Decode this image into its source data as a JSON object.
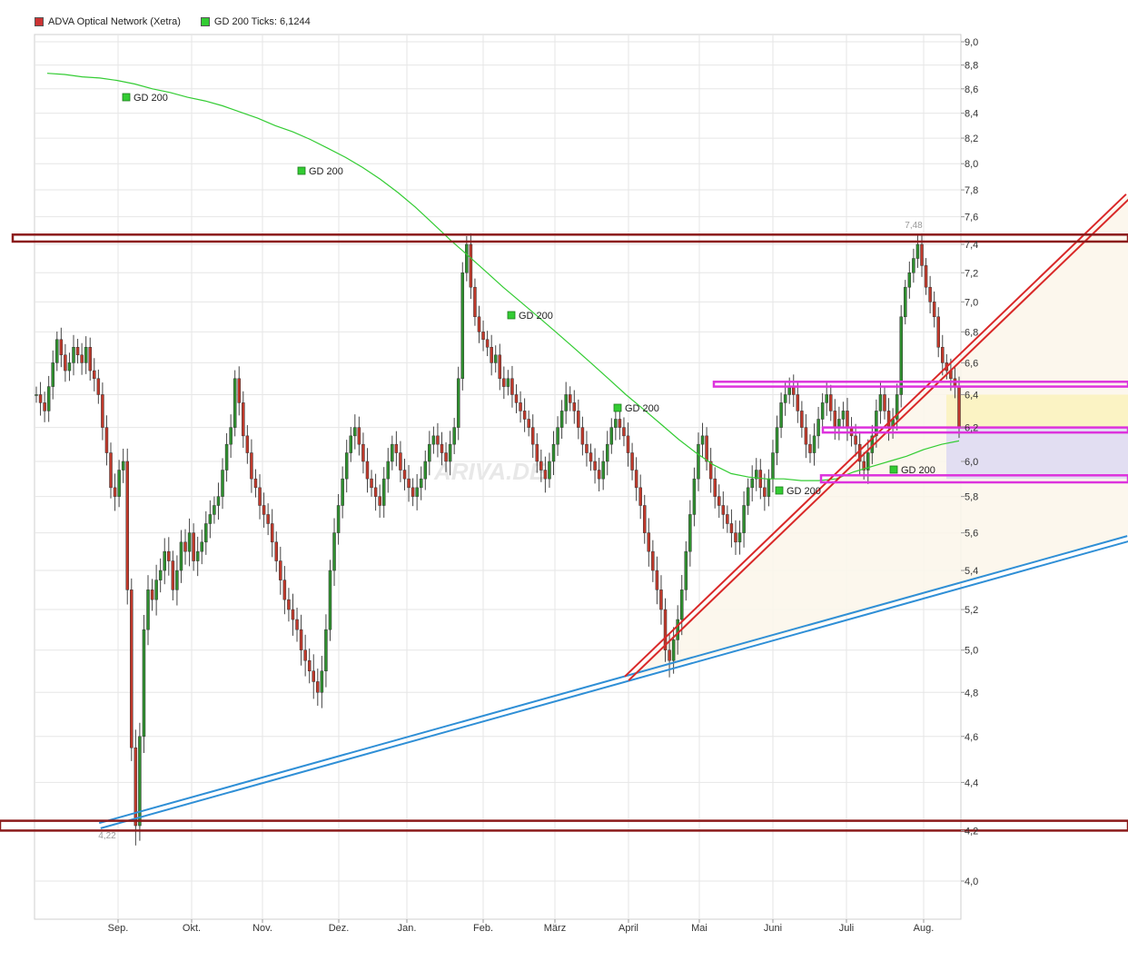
{
  "legend": {
    "series1": {
      "label": "ADVA Optical Network (Xetra)",
      "color": "#cc3333"
    },
    "series2": {
      "label": "GD 200 Ticks: 6,1244",
      "color": "#33cc33"
    }
  },
  "watermark": "ARIVA.DE",
  "chart_data": {
    "type": "candlestick",
    "title": "",
    "xlabel": "",
    "ylabel": "",
    "ylim": [
      3.8,
      9.0
    ],
    "y_ticks": [
      "4,0",
      "4,2",
      "4,4",
      "4,6",
      "4,8",
      "5,0",
      "5,2",
      "5,4",
      "5,6",
      "5,8",
      "6,0",
      "6,2",
      "6,4",
      "6,6",
      "6,8",
      "7,0",
      "7,2",
      "7,4",
      "7,6",
      "7,8",
      "8,0",
      "8,2",
      "8,4",
      "8,6",
      "8,8",
      "9,0"
    ],
    "months": [
      "Sep.",
      "Okt.",
      "Nov.",
      "Dez.",
      "Jan.",
      "Feb.",
      "März",
      "April",
      "Mai",
      "Juni",
      "Juli",
      "Aug."
    ],
    "high_label": "7,48",
    "low_label": "4,22",
    "gd_label": "GD 200",
    "series": [
      {
        "name": "ADVA Optical Network (Xetra)",
        "close": [
          6.4,
          6.35,
          6.3,
          6.45,
          6.6,
          6.75,
          6.65,
          6.55,
          6.6,
          6.7,
          6.65,
          6.6,
          6.7,
          6.55,
          6.5,
          6.4,
          6.2,
          6.05,
          5.85,
          5.8,
          5.95,
          6.0,
          5.3,
          4.55,
          4.22,
          4.6,
          5.1,
          5.3,
          5.25,
          5.35,
          5.4,
          5.5,
          5.45,
          5.3,
          5.4,
          5.55,
          5.5,
          5.6,
          5.45,
          5.5,
          5.55,
          5.65,
          5.7,
          5.75,
          5.8,
          5.95,
          6.1,
          6.2,
          6.5,
          6.35,
          6.15,
          6.05,
          5.9,
          5.85,
          5.75,
          5.7,
          5.65,
          5.55,
          5.45,
          5.35,
          5.25,
          5.2,
          5.15,
          5.1,
          5.0,
          4.95,
          4.9,
          4.85,
          4.8,
          4.9,
          5.1,
          5.4,
          5.6,
          5.75,
          5.9,
          6.05,
          6.15,
          6.2,
          6.1,
          6.0,
          5.9,
          5.85,
          5.8,
          5.75,
          5.9,
          6.0,
          6.1,
          6.05,
          5.95,
          5.9,
          5.85,
          5.8,
          5.85,
          5.9,
          6.0,
          6.1,
          6.15,
          6.1,
          6.05,
          6.0,
          6.1,
          6.2,
          6.5,
          7.2,
          7.4,
          7.1,
          6.9,
          6.8,
          6.75,
          6.7,
          6.6,
          6.65,
          6.5,
          6.45,
          6.5,
          6.4,
          6.35,
          6.3,
          6.25,
          6.2,
          6.1,
          6.0,
          5.95,
          5.9,
          6.0,
          6.1,
          6.2,
          6.3,
          6.4,
          6.35,
          6.3,
          6.2,
          6.1,
          6.05,
          6.0,
          5.95,
          5.9,
          6.0,
          6.1,
          6.2,
          6.25,
          6.2,
          6.15,
          6.05,
          5.95,
          5.85,
          5.75,
          5.6,
          5.5,
          5.4,
          5.3,
          5.2,
          5.0,
          4.95,
          5.05,
          5.15,
          5.3,
          5.5,
          5.7,
          5.9,
          6.1,
          6.15,
          6.0,
          5.9,
          5.8,
          5.75,
          5.7,
          5.65,
          5.6,
          5.55,
          5.6,
          5.75,
          5.85,
          5.9,
          5.95,
          5.85,
          5.8,
          5.9,
          6.05,
          6.2,
          6.35,
          6.4,
          6.45,
          6.4,
          6.3,
          6.2,
          6.1,
          6.05,
          6.15,
          6.25,
          6.35,
          6.4,
          6.3,
          6.2,
          6.25,
          6.3,
          6.2,
          6.15,
          6.1,
          6.0,
          5.95,
          6.05,
          6.15,
          6.3,
          6.4,
          6.3,
          6.2,
          6.25,
          6.4,
          6.9,
          7.1,
          7.2,
          7.3,
          7.4,
          7.25,
          7.1,
          7.0,
          6.9,
          6.7,
          6.6,
          6.55,
          6.5,
          6.45,
          6.2
        ]
      },
      {
        "name": "GD 200",
        "values": [
          8.73,
          8.72,
          8.7,
          8.69,
          8.67,
          8.64,
          8.6,
          8.57,
          8.53,
          8.5,
          8.46,
          8.41,
          8.36,
          8.3,
          8.25,
          8.19,
          8.12,
          8.05,
          7.97,
          7.88,
          7.78,
          7.67,
          7.55,
          7.43,
          7.32,
          7.21,
          7.1,
          7.0,
          6.9,
          6.8,
          6.7,
          6.6,
          6.5,
          6.4,
          6.31,
          6.22,
          6.13,
          6.05,
          5.98,
          5.93,
          5.91,
          5.9,
          5.9,
          5.89,
          5.89,
          5.9,
          5.94,
          5.97,
          6.0,
          6.03,
          6.07,
          6.1,
          6.12
        ]
      }
    ]
  }
}
